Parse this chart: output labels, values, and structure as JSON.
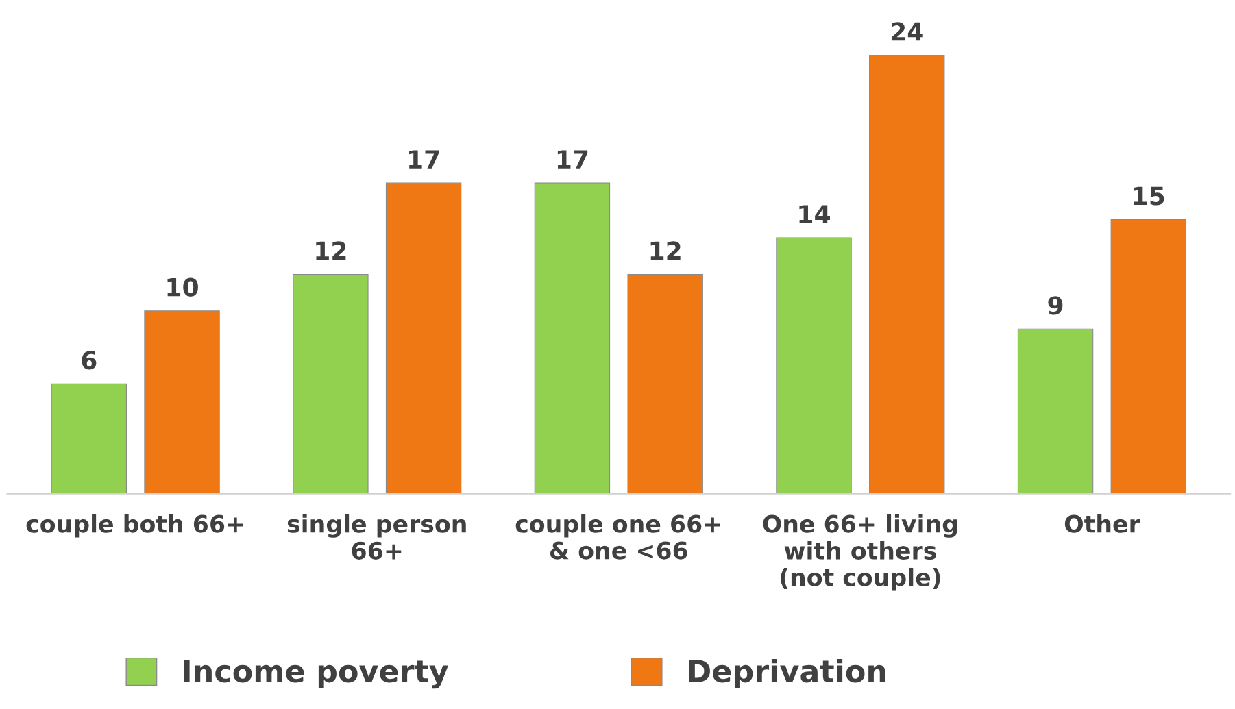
{
  "chart_data": {
    "type": "bar",
    "categories": [
      "couple both 66+",
      "single person\n66+",
      "couple one 66+\n& one <66",
      "One 66+ living\nwith others\n(not couple)",
      "Other"
    ],
    "series": [
      {
        "name": "Income poverty",
        "color": "#92d050",
        "values": [
          6,
          12,
          17,
          14,
          9
        ]
      },
      {
        "name": "Deprivation",
        "color": "#f07814",
        "values": [
          10,
          17,
          12,
          24,
          15
        ]
      }
    ],
    "data_labels": true,
    "legend": "bottom left",
    "grid": false
  }
}
